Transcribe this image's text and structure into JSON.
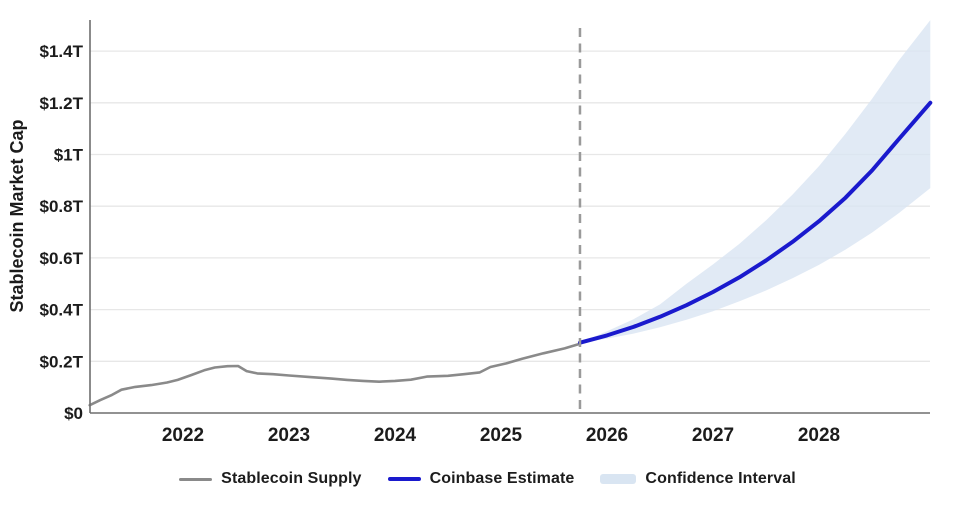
{
  "chart_data": {
    "type": "line",
    "title": "",
    "ylabel": "Stablecoin Market Cap",
    "x_axis": {
      "tick_years": [
        2022,
        2023,
        2024,
        2025,
        2026,
        2027,
        2028
      ],
      "tick_labels": [
        "2022",
        "2023",
        "2024",
        "2025",
        "2026",
        "2027",
        "2028"
      ],
      "range": [
        2021.12,
        2029.05
      ]
    },
    "y_axis": {
      "tick_values": [
        0,
        0.2,
        0.4,
        0.6,
        0.8,
        1.0,
        1.2,
        1.4
      ],
      "tick_labels": [
        "$0",
        "$0.2T",
        "$0.4T",
        "$0.6T",
        "$0.8T",
        "$1T",
        "$1.2T",
        "$1.4T"
      ],
      "range": [
        0,
        1.52
      ],
      "unit": "USD trillions"
    },
    "grid": "horizontal",
    "legend_position": "bottom",
    "forecast_divider_x": 2025.745,
    "series": [
      {
        "name": "Stablecoin Supply",
        "kind": "historical-line",
        "color": "#8a8a8a",
        "points": [
          [
            2021.12,
            0.03
          ],
          [
            2021.22,
            0.05
          ],
          [
            2021.33,
            0.07
          ],
          [
            2021.42,
            0.09
          ],
          [
            2021.55,
            0.101
          ],
          [
            2021.7,
            0.108
          ],
          [
            2021.85,
            0.118
          ],
          [
            2021.95,
            0.128
          ],
          [
            2022.08,
            0.147
          ],
          [
            2022.2,
            0.165
          ],
          [
            2022.3,
            0.176
          ],
          [
            2022.42,
            0.181
          ],
          [
            2022.52,
            0.182
          ],
          [
            2022.6,
            0.162
          ],
          [
            2022.7,
            0.153
          ],
          [
            2022.85,
            0.15
          ],
          [
            2023.0,
            0.145
          ],
          [
            2023.2,
            0.139
          ],
          [
            2023.4,
            0.133
          ],
          [
            2023.55,
            0.128
          ],
          [
            2023.7,
            0.124
          ],
          [
            2023.85,
            0.121
          ],
          [
            2024.0,
            0.124
          ],
          [
            2024.15,
            0.129
          ],
          [
            2024.3,
            0.141
          ],
          [
            2024.5,
            0.144
          ],
          [
            2024.65,
            0.15
          ],
          [
            2024.8,
            0.157
          ],
          [
            2024.9,
            0.178
          ],
          [
            2025.05,
            0.192
          ],
          [
            2025.2,
            0.21
          ],
          [
            2025.4,
            0.231
          ],
          [
            2025.6,
            0.25
          ],
          [
            2025.745,
            0.268
          ]
        ]
      },
      {
        "name": "Coinbase Estimate",
        "kind": "forecast-line",
        "color": "#1a1acd",
        "points": [
          [
            2025.745,
            0.272
          ],
          [
            2026.0,
            0.3
          ],
          [
            2026.25,
            0.333
          ],
          [
            2026.5,
            0.372
          ],
          [
            2026.75,
            0.417
          ],
          [
            2027.0,
            0.468
          ],
          [
            2027.25,
            0.525
          ],
          [
            2027.5,
            0.59
          ],
          [
            2027.75,
            0.662
          ],
          [
            2028.0,
            0.742
          ],
          [
            2028.25,
            0.833
          ],
          [
            2028.5,
            0.938
          ],
          [
            2028.75,
            1.058
          ],
          [
            2029.05,
            1.2
          ]
        ]
      },
      {
        "name": "Confidence Interval",
        "kind": "band",
        "color": "#d9e5f2",
        "points": [
          [
            2025.745,
            0.272,
            0.272
          ],
          [
            2026.0,
            0.288,
            0.316
          ],
          [
            2026.25,
            0.307,
            0.363
          ],
          [
            2026.5,
            0.332,
            0.42
          ],
          [
            2026.75,
            0.361,
            0.5
          ],
          [
            2027.0,
            0.394,
            0.575
          ],
          [
            2027.25,
            0.432,
            0.655
          ],
          [
            2027.5,
            0.474,
            0.745
          ],
          [
            2027.75,
            0.521,
            0.845
          ],
          [
            2028.0,
            0.573,
            0.955
          ],
          [
            2028.25,
            0.632,
            1.08
          ],
          [
            2028.5,
            0.698,
            1.215
          ],
          [
            2028.75,
            0.772,
            1.362
          ],
          [
            2029.05,
            0.87,
            1.52
          ]
        ]
      }
    ],
    "colors": {
      "historical": "#8a8a8a",
      "forecast": "#1a1acd",
      "band": "#d9e5f2",
      "divider": "#9a9a9a",
      "gridline": "#e7e7e7",
      "axis": "#6e6e6e",
      "text": "#1c1c1c"
    }
  }
}
